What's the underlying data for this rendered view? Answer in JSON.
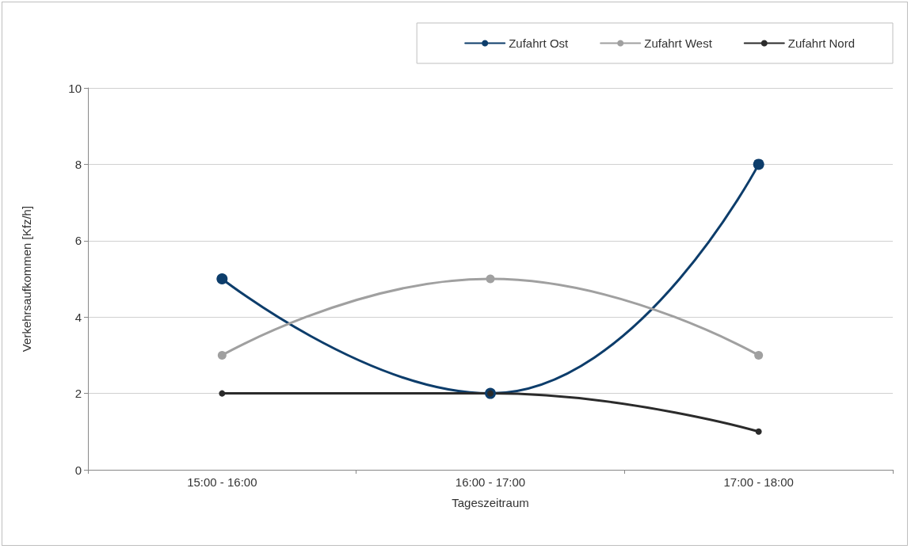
{
  "chart_data": {
    "type": "line",
    "xlabel": "Tageszeitraum",
    "ylabel": "Verkehrsaufkommen [Kfz/h]",
    "categories": [
      "15:00 - 16:00",
      "16:00 - 17:00",
      "17:00 - 18:00"
    ],
    "series": [
      {
        "name": "Zufahrt Ost",
        "color": "#0d3d6b",
        "values": [
          5,
          2,
          8
        ]
      },
      {
        "name": "Zufahrt West",
        "color": "#a0a0a0",
        "values": [
          3,
          5,
          3
        ]
      },
      {
        "name": "Zufahrt Nord",
        "color": "#2b2b2b",
        "values": [
          2,
          2,
          1
        ]
      }
    ],
    "ylim": [
      0,
      10
    ],
    "yticks": [
      0,
      2,
      4,
      6,
      8,
      10
    ],
    "grid": "y",
    "legend": "top right",
    "marker": "circle",
    "line_style": "solid"
  }
}
